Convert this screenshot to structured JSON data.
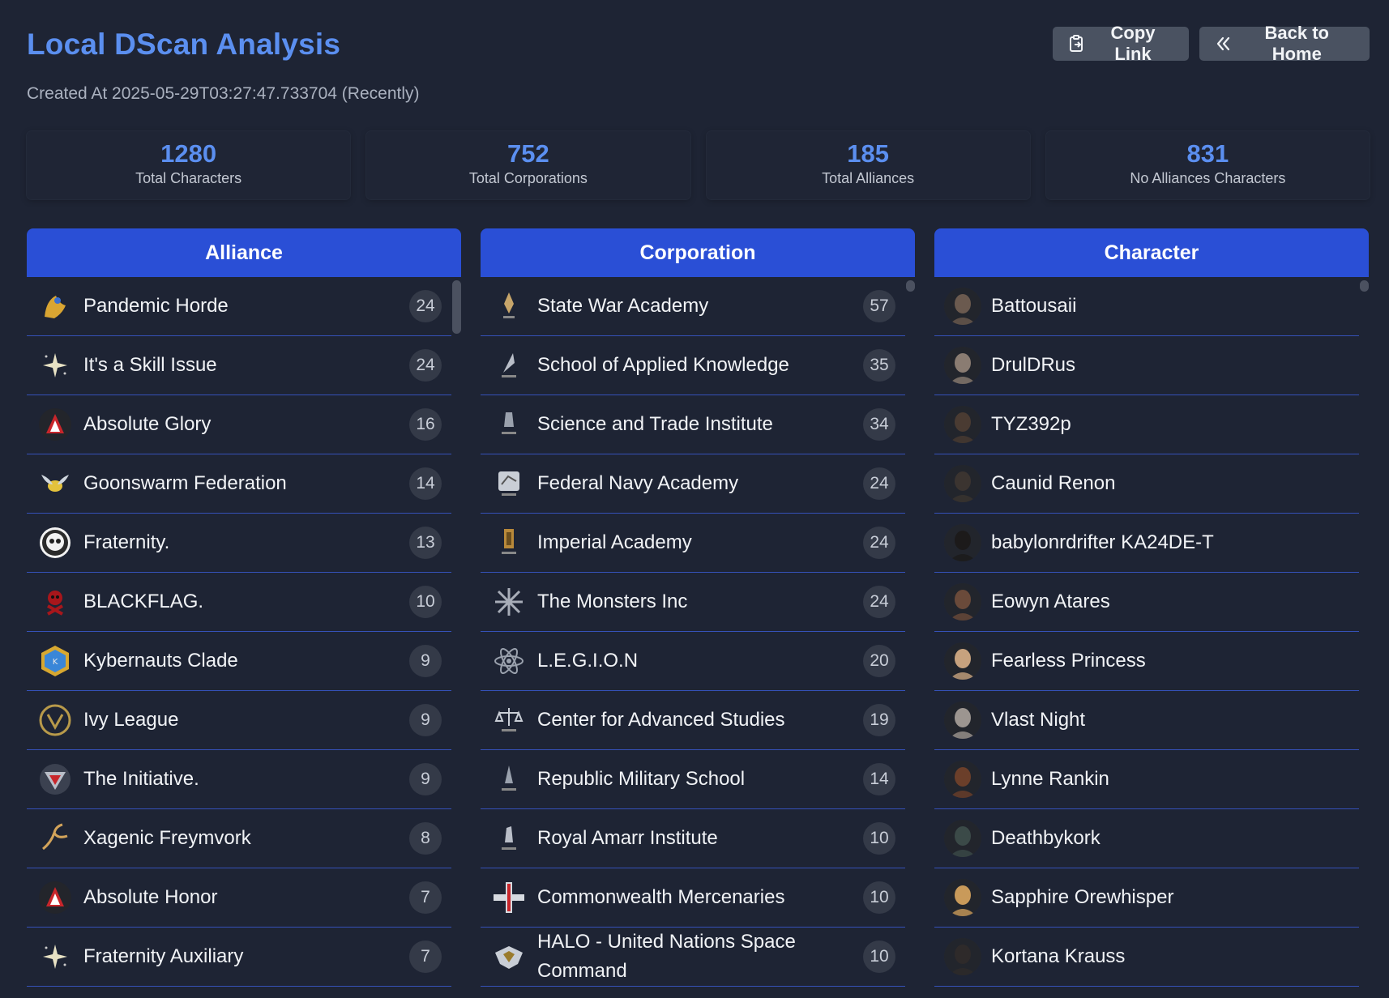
{
  "header": {
    "title": "Local DScan Analysis",
    "copy_link_label": "Copy Link",
    "back_home_label": "Back to Home",
    "copy_icon": "clipboard-icon",
    "back_icon": "double-chevron-left-icon"
  },
  "created_at": "Created At 2025-05-29T03:27:47.733704 (Recently)",
  "stats": [
    {
      "value": "1280",
      "label": "Total Characters"
    },
    {
      "value": "752",
      "label": "Total Corporations"
    },
    {
      "value": "185",
      "label": "Total Alliances"
    },
    {
      "value": "831",
      "label": "No Alliances Characters"
    }
  ],
  "columns": {
    "alliance": {
      "title": "Alliance",
      "items": [
        {
          "name": "Pandemic Horde",
          "count": "24"
        },
        {
          "name": "It's a Skill Issue",
          "count": "24"
        },
        {
          "name": "Absolute Glory",
          "count": "16"
        },
        {
          "name": "Goonswarm Federation",
          "count": "14"
        },
        {
          "name": "Fraternity.",
          "count": "13"
        },
        {
          "name": "BLACKFLAG.",
          "count": "10"
        },
        {
          "name": "Kybernauts Clade",
          "count": "9"
        },
        {
          "name": "Ivy League",
          "count": "9"
        },
        {
          "name": "The Initiative.",
          "count": "9"
        },
        {
          "name": "Xagenic Freymvork",
          "count": "8"
        },
        {
          "name": "Absolute Honor",
          "count": "7"
        },
        {
          "name": "Fraternity Auxiliary",
          "count": "7"
        }
      ]
    },
    "corporation": {
      "title": "Corporation",
      "items": [
        {
          "name": "State War Academy",
          "count": "57"
        },
        {
          "name": "School of Applied Knowledge",
          "count": "35"
        },
        {
          "name": "Science and Trade Institute",
          "count": "34"
        },
        {
          "name": "Federal Navy Academy",
          "count": "24"
        },
        {
          "name": "Imperial Academy",
          "count": "24"
        },
        {
          "name": "The Monsters Inc",
          "count": "24"
        },
        {
          "name": "L.E.G.I.O.N",
          "count": "20"
        },
        {
          "name": "Center for Advanced Studies",
          "count": "19"
        },
        {
          "name": "Republic Military School",
          "count": "14"
        },
        {
          "name": "Royal Amarr Institute",
          "count": "10"
        },
        {
          "name": "Commonwealth Mercenaries",
          "count": "10"
        },
        {
          "name": "HALO - United Nations Space Command",
          "count": "10"
        }
      ]
    },
    "character": {
      "title": "Character",
      "items": [
        {
          "name": "Battousaii"
        },
        {
          "name": "DrulDRus"
        },
        {
          "name": "TYZ392p"
        },
        {
          "name": "Caunid Renon"
        },
        {
          "name": "babylonrdrifter KA24DE-T"
        },
        {
          "name": "Eowyn Atares"
        },
        {
          "name": "Fearless Princess"
        },
        {
          "name": "Vlast Night"
        },
        {
          "name": "Lynne Rankin"
        },
        {
          "name": "Deathbykork"
        },
        {
          "name": "Sapphire Orewhisper"
        },
        {
          "name": "Kortana Krauss"
        }
      ]
    }
  },
  "colors": {
    "accent": "#5b8ff0",
    "header_bar": "#2a4fd6",
    "background": "#1e2434",
    "button": "#4a5261"
  }
}
